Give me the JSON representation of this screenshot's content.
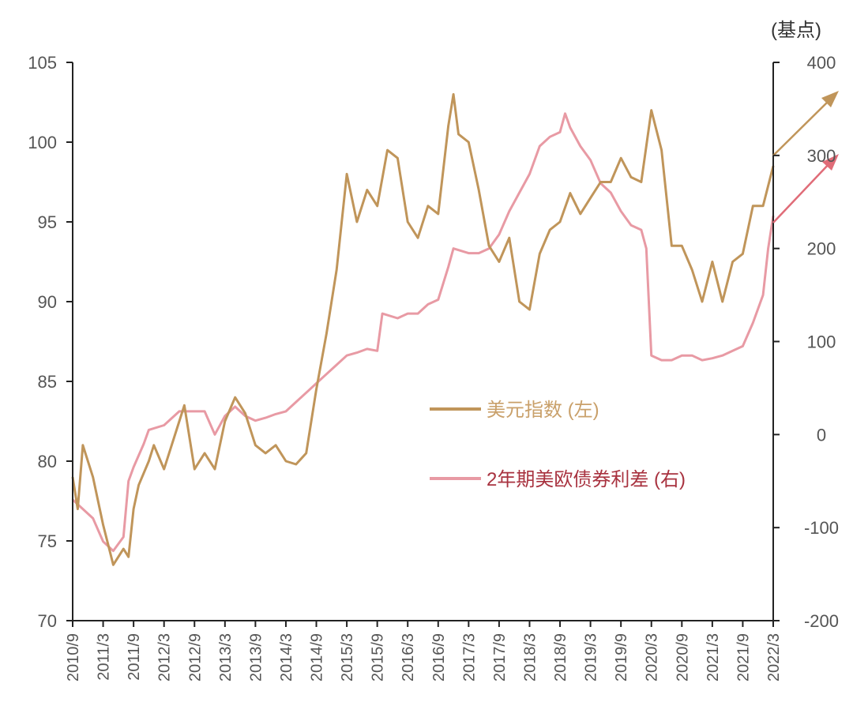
{
  "chart_data": {
    "type": "line",
    "title": "",
    "unit_label_right": "(基点)",
    "x_ticks": [
      "2010/9",
      "2011/3",
      "2011/9",
      "2012/3",
      "2012/9",
      "2013/3",
      "2013/9",
      "2014/3",
      "2014/9",
      "2015/3",
      "2015/9",
      "2016/3",
      "2016/9",
      "2017/3",
      "2017/9",
      "2018/3",
      "2018/9",
      "2019/3",
      "2019/9",
      "2020/3",
      "2020/9",
      "2021/3",
      "2021/9",
      "2022/3"
    ],
    "y_left": {
      "ylim": [
        70,
        105
      ],
      "ticks": [
        "70",
        "75",
        "80",
        "85",
        "90",
        "95",
        "100",
        "105"
      ]
    },
    "y_right": {
      "ylim": [
        -200,
        400
      ],
      "ticks": [
        "-200",
        "-100",
        "0",
        "100",
        "200",
        "300",
        "400"
      ]
    },
    "legend": {
      "placement": "center-right",
      "entries": [
        "美元指数 (左)",
        "2年期美欧债券利差 (右)"
      ]
    },
    "series": [
      {
        "name": "美元指数 (左)",
        "axis": "left",
        "color": "#c0955a",
        "x": [
          "2010/9",
          "2010/10",
          "2010/11",
          "2011/1",
          "2011/3",
          "2011/5",
          "2011/7",
          "2011/8",
          "2011/9",
          "2011/10",
          "2011/12",
          "2012/1",
          "2012/3",
          "2012/6",
          "2012/7",
          "2012/9",
          "2012/11",
          "2013/1",
          "2013/3",
          "2013/5",
          "2013/7",
          "2013/9",
          "2013/11",
          "2014/1",
          "2014/3",
          "2014/5",
          "2014/7",
          "2014/9",
          "2014/11",
          "2015/1",
          "2015/3",
          "2015/5",
          "2015/7",
          "2015/9",
          "2015/11",
          "2016/1",
          "2016/3",
          "2016/5",
          "2016/7",
          "2016/9",
          "2016/11",
          "2016/12",
          "2017/1",
          "2017/3",
          "2017/5",
          "2017/7",
          "2017/9",
          "2017/11",
          "2018/1",
          "2018/3",
          "2018/5",
          "2018/7",
          "2018/9",
          "2018/11",
          "2019/1",
          "2019/3",
          "2019/5",
          "2019/7",
          "2019/9",
          "2019/11",
          "2020/1",
          "2020/3",
          "2020/5",
          "2020/7",
          "2020/9",
          "2020/11",
          "2021/1",
          "2021/3",
          "2021/5",
          "2021/7",
          "2021/9",
          "2021/11",
          "2022/1",
          "2022/3"
        ],
        "values": [
          79,
          77,
          81,
          79,
          76,
          73.5,
          74.5,
          74,
          77,
          78.5,
          80,
          81,
          79.5,
          82.5,
          83.5,
          79.5,
          80.5,
          79.5,
          82.5,
          84,
          83,
          81,
          80.5,
          81,
          80,
          79.8,
          80.5,
          84.5,
          88,
          92,
          98,
          95,
          97,
          96,
          99.5,
          99,
          95,
          94,
          96,
          95.5,
          101,
          103,
          100.5,
          100,
          97,
          93.5,
          92.5,
          94,
          90,
          89.5,
          93,
          94.5,
          95,
          96.8,
          95.5,
          96.5,
          97.5,
          97.5,
          99,
          97.8,
          97.5,
          102,
          99.5,
          93.5,
          93.5,
          92,
          90,
          92.5,
          90,
          92.5,
          93,
          96,
          96,
          98.5
        ]
      },
      {
        "name": "2年期美欧债券利差 (右)",
        "axis": "right",
        "color": "#e89aa4",
        "x": [
          "2010/9",
          "2010/11",
          "2011/1",
          "2011/3",
          "2011/5",
          "2011/7",
          "2011/8",
          "2011/9",
          "2011/11",
          "2011/12",
          "2012/3",
          "2012/6",
          "2012/9",
          "2012/11",
          "2013/1",
          "2013/3",
          "2013/5",
          "2013/7",
          "2013/9",
          "2013/11",
          "2014/1",
          "2014/3",
          "2014/5",
          "2014/7",
          "2014/9",
          "2014/11",
          "2015/1",
          "2015/3",
          "2015/5",
          "2015/7",
          "2015/9",
          "2015/10",
          "2016/1",
          "2016/3",
          "2016/5",
          "2016/7",
          "2016/9",
          "2016/11",
          "2016/12",
          "2017/3",
          "2017/5",
          "2017/7",
          "2017/9",
          "2017/11",
          "2018/1",
          "2018/3",
          "2018/5",
          "2018/7",
          "2018/9",
          "2018/10",
          "2018/11",
          "2019/1",
          "2019/3",
          "2019/5",
          "2019/7",
          "2019/9",
          "2019/11",
          "2020/1",
          "2020/2",
          "2020/3",
          "2020/5",
          "2020/7",
          "2020/9",
          "2020/11",
          "2021/1",
          "2021/3",
          "2021/5",
          "2021/7",
          "2021/9",
          "2021/11",
          "2022/1",
          "2022/2",
          "2022/3"
        ],
        "values": [
          -70,
          -80,
          -90,
          -115,
          -125,
          -110,
          -50,
          -35,
          -10,
          5,
          10,
          25,
          25,
          25,
          0,
          20,
          30,
          20,
          15,
          18,
          22,
          25,
          35,
          45,
          55,
          65,
          75,
          85,
          88,
          92,
          90,
          130,
          125,
          130,
          130,
          140,
          145,
          180,
          200,
          195,
          195,
          200,
          215,
          240,
          260,
          280,
          310,
          320,
          325,
          345,
          330,
          310,
          295,
          270,
          260,
          240,
          225,
          220,
          200,
          85,
          80,
          80,
          85,
          85,
          80,
          82,
          85,
          90,
          95,
          120,
          150,
          200,
          235
        ]
      }
    ]
  }
}
